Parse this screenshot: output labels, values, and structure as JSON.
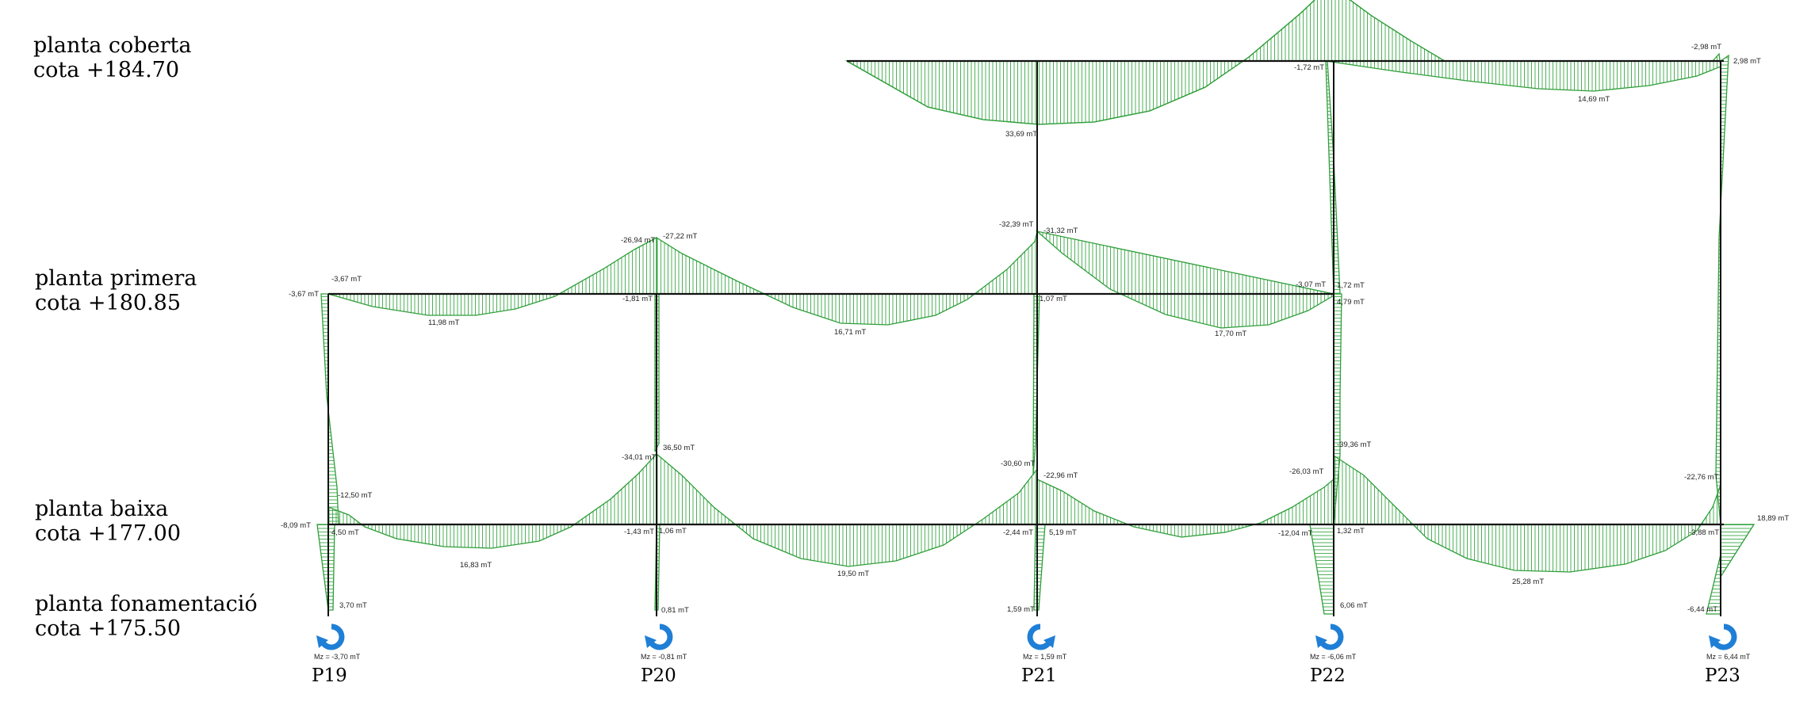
{
  "levels": [
    {
      "name": "planta coberta",
      "cota": "cota +184.70"
    },
    {
      "name": "planta primera",
      "cota": "cota +180.85"
    },
    {
      "name": "planta baixa",
      "cota": "cota +177.00"
    },
    {
      "name": "planta fonamentació",
      "cota": "cota +175.50"
    }
  ],
  "pillars": [
    {
      "label": "P19",
      "mz": "Mz = -3,70 mT",
      "rot": "cw"
    },
    {
      "label": "P20",
      "mz": "Mz = -0,81 mT",
      "rot": "cw"
    },
    {
      "label": "P21",
      "mz": "Mz = 1,59 mT",
      "rot": "ccw"
    },
    {
      "label": "P22",
      "mz": "Mz = -6,06 mT",
      "rot": "cw"
    },
    {
      "label": "P23",
      "mz": "Mz = 6,44 mT",
      "rot": "cw"
    }
  ],
  "moment_labels": [
    {
      "id": "m01",
      "text": "33,69 mT"
    },
    {
      "id": "m02",
      "text": "-1,72 mT"
    },
    {
      "id": "m03",
      "text": "14,69 mT"
    },
    {
      "id": "m04",
      "text": "-2,98 mT"
    },
    {
      "id": "m05",
      "text": "2,98 mT"
    },
    {
      "id": "m06",
      "text": "-3,67 mT"
    },
    {
      "id": "m07",
      "text": "-3,67 mT"
    },
    {
      "id": "m08",
      "text": "11,98 mT"
    },
    {
      "id": "m09",
      "text": "-26,94 mT"
    },
    {
      "id": "m10",
      "text": "-27,22 mT"
    },
    {
      "id": "m11",
      "text": "-1,81 mT"
    },
    {
      "id": "m12",
      "text": "16,71 mT"
    },
    {
      "id": "m13",
      "text": "-32,39 mT"
    },
    {
      "id": "m14",
      "text": "-31,32 mT"
    },
    {
      "id": "m15",
      "text": "1,07 mT"
    },
    {
      "id": "m16",
      "text": "17,70 mT"
    },
    {
      "id": "m17",
      "text": "-3,07 mT"
    },
    {
      "id": "m18",
      "text": "1,72 mT"
    },
    {
      "id": "m19",
      "text": "4,79 mT"
    },
    {
      "id": "m20",
      "text": "-8,09 mT"
    },
    {
      "id": "m21",
      "text": "-12,50 mT"
    },
    {
      "id": "m22",
      "text": "4,50 mT"
    },
    {
      "id": "m23",
      "text": "16,83 mT"
    },
    {
      "id": "m24",
      "text": "-34,01 mT"
    },
    {
      "id": "m25",
      "text": "36,50 mT"
    },
    {
      "id": "m26",
      "text": "-1,43 mT"
    },
    {
      "id": "m27",
      "text": "1,06 mT"
    },
    {
      "id": "m28",
      "text": "19,50 mT"
    },
    {
      "id": "m29",
      "text": "-30,60 mT"
    },
    {
      "id": "m30",
      "text": "-22,96 mT"
    },
    {
      "id": "m31",
      "text": "-2,44 mT"
    },
    {
      "id": "m32",
      "text": "5,19 mT"
    },
    {
      "id": "m33",
      "text": "-26,03 mT"
    },
    {
      "id": "m34",
      "text": "-39,36 mT"
    },
    {
      "id": "m35",
      "text": "-12,04 mT"
    },
    {
      "id": "m36",
      "text": "1,32 mT"
    },
    {
      "id": "m37",
      "text": "25,28 mT"
    },
    {
      "id": "m38",
      "text": "-22,76 mT"
    },
    {
      "id": "m39",
      "text": "-3,88 mT"
    },
    {
      "id": "m40",
      "text": "18,89 mT"
    },
    {
      "id": "m41",
      "text": "3,70 mT"
    },
    {
      "id": "m42",
      "text": "0,81 mT"
    },
    {
      "id": "m43",
      "text": "1,59 mT"
    },
    {
      "id": "m44",
      "text": "6,06 mT"
    },
    {
      "id": "m45",
      "text": "-6,44 mT"
    }
  ],
  "colors": {
    "diagram_fill": "#d9f2d4",
    "diagram_stroke": "#2f9e3a",
    "hatch": "#3aa845",
    "structure": "#111111",
    "support_icon": "#1f7fd6"
  }
}
